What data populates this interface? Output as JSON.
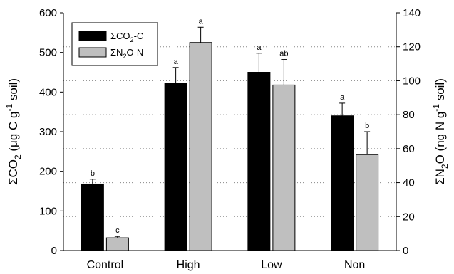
{
  "chart_data": {
    "type": "bar",
    "categories": [
      "Control",
      "High",
      "Low",
      "Non"
    ],
    "series": [
      {
        "name": "ΣCO2-C",
        "name_parts": [
          "ΣCO",
          "2",
          "-C"
        ],
        "color": "#000000",
        "axis": "left",
        "values": [
          168,
          422,
          450,
          340
        ],
        "errors": [
          12,
          40,
          48,
          32
        ],
        "significance": [
          "b",
          "a",
          "a",
          "a"
        ]
      },
      {
        "name": "ΣN2O-N",
        "name_parts": [
          "ΣN",
          "2",
          "O-N"
        ],
        "color": "#bfbfbf",
        "axis": "right",
        "values": [
          7.5,
          122.5,
          97.5,
          56.5
        ],
        "errors": [
          0.8,
          9,
          15,
          13.5
        ],
        "significance": [
          "c",
          "a",
          "ab",
          "b"
        ]
      }
    ],
    "y_left": {
      "title_parts": [
        "ΣCO",
        "2",
        " (μg C g",
        "-1",
        " soil)"
      ],
      "ylim": [
        0,
        600
      ],
      "ticks": [
        "0",
        "100",
        "200",
        "300",
        "400",
        "500",
        "600"
      ]
    },
    "y_right": {
      "title_parts": [
        "ΣN",
        "2",
        "O (ng N g",
        "-1",
        " soil)"
      ],
      "ylim": [
        0,
        140
      ],
      "ticks": [
        "0",
        "20",
        "40",
        "60",
        "80",
        "100",
        "120",
        "140"
      ]
    },
    "grid": "horizontal dotted",
    "legend_position": "top-left"
  }
}
